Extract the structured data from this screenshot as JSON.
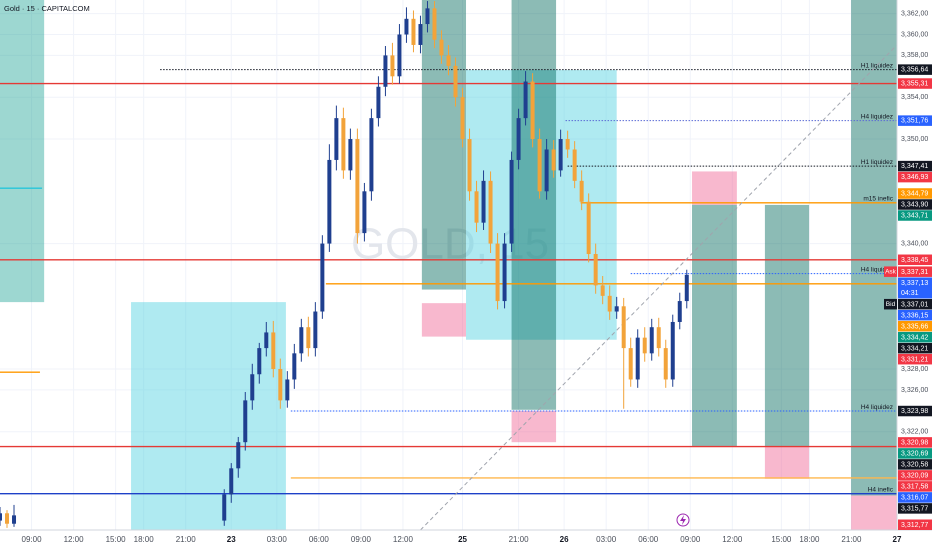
{
  "chart_data": {
    "type": "candlestick",
    "title": "Gold · 15 · CAPITALCOM",
    "watermark": "GOLD, 15",
    "xlim": [
      0,
      256
    ],
    "ylim": [
      3312.6,
      3363.3
    ],
    "grid": true,
    "up_color": "#1f3f8f",
    "down_color": "#f2a33a",
    "yticks": [
      {
        "value": 3362,
        "label": "3,362,00"
      },
      {
        "value": 3360,
        "label": "3,360,00"
      },
      {
        "value": 3358,
        "label": "3,358,00"
      },
      {
        "value": 3354,
        "label": "3,354,00"
      },
      {
        "value": 3350,
        "label": "3,350,00"
      },
      {
        "value": 3340,
        "label": "3,340,00"
      },
      {
        "value": 3328,
        "label": "3,328,00"
      },
      {
        "value": 3326,
        "label": "3,326,00"
      },
      {
        "value": 3322,
        "label": "3,322,00"
      }
    ],
    "xticks": [
      {
        "value": 9,
        "label": "09:00"
      },
      {
        "value": 21,
        "label": "12:00"
      },
      {
        "value": 33,
        "label": "15:00"
      },
      {
        "value": 41,
        "label": "18:00"
      },
      {
        "value": 53,
        "label": "21:00"
      },
      {
        "value": 66,
        "label": "23"
      },
      {
        "value": 79,
        "label": "03:00"
      },
      {
        "value": 91,
        "label": "06:00"
      },
      {
        "value": 103,
        "label": "09:00"
      },
      {
        "value": 115,
        "label": "12:00"
      },
      {
        "value": 132,
        "label": "25"
      },
      {
        "value": 148,
        "label": "21:00"
      },
      {
        "value": 161,
        "label": "26"
      },
      {
        "value": 173,
        "label": "03:00"
      },
      {
        "value": 185,
        "label": "06:00"
      },
      {
        "value": 197,
        "label": "09:00"
      },
      {
        "value": 209,
        "label": "12:00"
      },
      {
        "value": 223,
        "label": "15:00"
      },
      {
        "value": 231,
        "label": "18:00"
      },
      {
        "value": 243,
        "label": "21:00"
      },
      {
        "value": 256,
        "label": "27"
      }
    ],
    "zones": [
      {
        "x0": 0,
        "x1": 12.6,
        "y0": 3334.4,
        "y1": 3363.3,
        "color": "#26a69a"
      },
      {
        "x0": 37.4,
        "x1": 81.6,
        "y0": 3312.6,
        "y1": 3334.4,
        "color": "#4dd0e1"
      },
      {
        "x0": 120.4,
        "x1": 133,
        "y0": 3335.6,
        "y1": 3363.3,
        "color": "#00695c"
      },
      {
        "x0": 120.4,
        "x1": 133,
        "y0": 3331.1,
        "y1": 3334.3,
        "color": "#f06292"
      },
      {
        "x0": 133,
        "x1": 176,
        "y0": 3330.8,
        "y1": 3356.6,
        "color": "#4dd0e1"
      },
      {
        "x0": 146,
        "x1": 158.7,
        "y0": 3324.1,
        "y1": 3363.3,
        "color": "#00695c"
      },
      {
        "x0": 146,
        "x1": 158.7,
        "y0": 3321,
        "y1": 3324,
        "color": "#f06292"
      },
      {
        "x0": 197.5,
        "x1": 210.3,
        "y0": 3343.7,
        "y1": 3346.9,
        "color": "#f06292"
      },
      {
        "x0": 197.5,
        "x1": 210.3,
        "y0": 3320.6,
        "y1": 3343.7,
        "color": "#00695c"
      },
      {
        "x0": 218.3,
        "x1": 230.9,
        "y0": 3320.6,
        "y1": 3343.7,
        "color": "#00695c"
      },
      {
        "x0": 218.3,
        "x1": 230.9,
        "y0": 3317.5,
        "y1": 3320.6,
        "color": "#f06292"
      },
      {
        "x0": 242.9,
        "x1": 256,
        "y0": 3315.9,
        "y1": 3363.3,
        "color": "#00695c"
      },
      {
        "x0": 242.9,
        "x1": 256,
        "y0": 3312.6,
        "y1": 3315.9,
        "color": "#f06292"
      }
    ],
    "levels": [
      {
        "value": 3356.64,
        "from": 45.7,
        "to": 256,
        "color": "#131722",
        "dash": true,
        "label": "H1 liquidez"
      },
      {
        "value": 3355.31,
        "from": 0,
        "to": 256,
        "color": "#e53935",
        "dash": false
      },
      {
        "value": 3351.76,
        "from": 161.4,
        "to": 256,
        "color": "#5b6bd5",
        "dash": true,
        "label": "H4 liquidez"
      },
      {
        "value": 3347.41,
        "from": 162,
        "to": 256,
        "color": "#131722",
        "dash": true,
        "label": "H1 liquidez"
      },
      {
        "value": 3345.3,
        "from": 0,
        "to": 12,
        "color": "#26c6da",
        "dash": false
      },
      {
        "value": 3343.9,
        "from": 165.7,
        "to": 256,
        "color": "#ff9800",
        "dash": false,
        "label": "m15 inefic"
      },
      {
        "value": 3338.45,
        "from": 0,
        "to": 256,
        "color": "#e53935",
        "dash": false
      },
      {
        "value": 3337.13,
        "from": 180,
        "to": 256,
        "color": "#2962ff",
        "dash": true,
        "label": "H4 liquidez"
      },
      {
        "value": 3336.15,
        "from": 93,
        "to": 256,
        "color": "#ff9800",
        "dash": false
      },
      {
        "value": 3327.7,
        "from": 0,
        "to": 11.4,
        "color": "#ff9800",
        "dash": false
      },
      {
        "value": 3323.98,
        "from": 83,
        "to": 256,
        "color": "#2962ff",
        "dash": true,
        "label": "H4 liquidez"
      },
      {
        "value": 3320.58,
        "from": 0,
        "to": 256,
        "color": "#e53935",
        "dash": false
      },
      {
        "value": 3317.58,
        "from": 83,
        "to": 256,
        "color": "#ffb74d",
        "dash": false
      },
      {
        "value": 3316.07,
        "from": 0,
        "to": 256,
        "color": "#1e40c8",
        "dash": false,
        "label": "H4 inefic"
      }
    ],
    "trendline": {
      "x": [
        120,
        256
      ],
      "y": [
        3312.6,
        3359
      ]
    },
    "badges": [
      {
        "value": 3356.64,
        "label": "3,356,64",
        "color": "#131722"
      },
      {
        "value": 3355.31,
        "label": "3,355,31",
        "color": "#f23645"
      },
      {
        "value": 3351.76,
        "label": "3,351,76",
        "color": "#2962ff"
      },
      {
        "value": 3347.41,
        "label": "3,347,41",
        "color": "#131722"
      },
      {
        "value": 3346.93,
        "label": "3,346,93",
        "color": "#f23645"
      },
      {
        "value": 3344.79,
        "label": "3,344,79",
        "color": "#ff9800"
      },
      {
        "value": 3343.9,
        "label": "3,343,90",
        "color": "#131722"
      },
      {
        "value": 3343.71,
        "label": "3,343,71",
        "color": "#089981"
      },
      {
        "value": 3338.45,
        "label": "3,338,45",
        "color": "#f23645"
      },
      {
        "value": 3337.31,
        "label": "3,337,31",
        "color": "#f23645",
        "tag": "Ask"
      },
      {
        "value": 3337.13,
        "label": "3,337,13",
        "color": "#2962ff",
        "countdown": "04:31"
      },
      {
        "value": 3337.01,
        "label": "3,337,01",
        "color": "#131722",
        "tag": "Bid"
      },
      {
        "value": 3336.15,
        "label": "3,336,15",
        "color": "#2962ff"
      },
      {
        "value": 3335.66,
        "label": "3,335,66",
        "color": "#ff9800"
      },
      {
        "value": 3334.42,
        "label": "3,334,42",
        "color": "#089981"
      },
      {
        "value": 3334.21,
        "label": "3,334,21",
        "color": "#131722"
      },
      {
        "value": 3331.21,
        "label": "3,331,21",
        "color": "#f23645"
      },
      {
        "value": 3323.98,
        "label": "3,323,98",
        "color": "#131722"
      },
      {
        "value": 3320.98,
        "label": "3,320,98",
        "color": "#f23645"
      },
      {
        "value": 3320.69,
        "label": "3,320,69",
        "color": "#089981"
      },
      {
        "value": 3320.58,
        "label": "3,320,58",
        "color": "#131722"
      },
      {
        "value": 3320.09,
        "label": "3,320,09",
        "color": "#f23645"
      },
      {
        "value": 3317.58,
        "label": "3,317,58",
        "color": "#f23645"
      },
      {
        "value": 3316.07,
        "label": "3,316,07",
        "color": "#2962ff"
      },
      {
        "value": 3315.77,
        "label": "3,315,77",
        "color": "#131722"
      },
      {
        "value": 3312.77,
        "label": "3,312,77",
        "color": "#f23645"
      }
    ],
    "candles": {
      "x": [
        0,
        2,
        4,
        64,
        66,
        68,
        70,
        72,
        74,
        76,
        78,
        80,
        82,
        84,
        86,
        88,
        90,
        92,
        94,
        96,
        98,
        100,
        102,
        104,
        106,
        108,
        110,
        112,
        114,
        116,
        118,
        120,
        122,
        124,
        126,
        128,
        130,
        132,
        134,
        136,
        138,
        140,
        142,
        144,
        146,
        148,
        150,
        152,
        154,
        156,
        158,
        160,
        162,
        164,
        166,
        168,
        170,
        172,
        174,
        176,
        178,
        180,
        182,
        184,
        186,
        188,
        190,
        192,
        194,
        196
      ],
      "open": [
        3313.5,
        3314.2,
        3313.2,
        3313.5,
        3316,
        3318.5,
        3321,
        3325,
        3327.5,
        3330,
        3331.5,
        3328,
        3325,
        3327,
        3329.5,
        3332,
        3330,
        3333.5,
        3340,
        3348,
        3352,
        3347,
        3350,
        3341,
        3345,
        3352,
        3355,
        3358,
        3356,
        3360,
        3361.5,
        3359,
        3361,
        3362.5,
        3359.5,
        3358,
        3357,
        3354,
        3350,
        3345,
        3342,
        3346,
        3340,
        3334.5,
        3340,
        3348,
        3352,
        3355.5,
        3350,
        3345,
        3349,
        3347,
        3350,
        3349,
        3346,
        3344,
        3339,
        3336,
        3335,
        3333.5,
        3334,
        3330,
        3327,
        3331,
        3329.5,
        3332,
        3330,
        3327,
        3332.5,
        3334.5
      ],
      "high": [
        3314.8,
        3314.5,
        3315,
        3316.5,
        3319,
        3321.5,
        3325.8,
        3328.5,
        3330.5,
        3332.5,
        3332.6,
        3329,
        3327.8,
        3330.4,
        3332.8,
        3333,
        3334.4,
        3340.8,
        3349.5,
        3353.2,
        3353,
        3351,
        3351,
        3345.8,
        3352.9,
        3356,
        3358.9,
        3359.2,
        3361,
        3362.6,
        3362.3,
        3361.8,
        3363.2,
        3363.2,
        3360.4,
        3359,
        3357.8,
        3354.9,
        3351,
        3346,
        3347,
        3346.9,
        3341,
        3341,
        3348.8,
        3352.9,
        3356.5,
        3356.3,
        3351,
        3350,
        3349.9,
        3350.9,
        3350.8,
        3349.8,
        3347,
        3344.8,
        3340,
        3336.9,
        3336,
        3334.9,
        3334.8,
        3331,
        3331.8,
        3332,
        3332.8,
        3332.9,
        3330.8,
        3333.2,
        3335.3,
        3337.5
      ],
      "low": [
        3313,
        3312.8,
        3312.9,
        3313,
        3315.2,
        3317.6,
        3320.2,
        3324.1,
        3326.6,
        3329.2,
        3327.2,
        3324.2,
        3324.3,
        3326.1,
        3328.7,
        3329.2,
        3329.2,
        3332.8,
        3339.2,
        3347,
        3346.2,
        3346.1,
        3340,
        3340.2,
        3344.1,
        3351.2,
        3354.1,
        3355.2,
        3355.3,
        3359.2,
        3358.3,
        3358.2,
        3360.2,
        3358.7,
        3357.2,
        3356.1,
        3353.1,
        3349.2,
        3344.1,
        3341.1,
        3341.3,
        3339.1,
        3333.7,
        3333.8,
        3339.2,
        3347.1,
        3351.3,
        3349.2,
        3344.3,
        3344.2,
        3346.3,
        3346.4,
        3348.2,
        3345.3,
        3343.2,
        3338.2,
        3335.2,
        3334.2,
        3332.7,
        3332.8,
        3324.2,
        3326.3,
        3326.2,
        3328.7,
        3328.8,
        3329.2,
        3326.2,
        3326.3,
        3331.8,
        3333.8
      ],
      "close": [
        3314.2,
        3313.2,
        3314,
        3316,
        3318.5,
        3321,
        3325,
        3327.5,
        3330,
        3331.5,
        3328,
        3325,
        3327,
        3329.5,
        3332,
        3330,
        3333.5,
        3340,
        3348,
        3352,
        3347,
        3350,
        3341,
        3345,
        3352,
        3355,
        3358,
        3356,
        3360,
        3361.5,
        3359,
        3361,
        3362.5,
        3359.5,
        3358,
        3357,
        3354,
        3350,
        3345,
        3342,
        3346,
        3340,
        3334.5,
        3340,
        3348,
        3352,
        3355.5,
        3350,
        3345,
        3349,
        3347,
        3350,
        3349,
        3346,
        3344,
        3339,
        3336,
        3335,
        3333.5,
        3334,
        3330,
        3327,
        3331,
        3329.5,
        3332,
        3330,
        3327,
        3332.5,
        3334.5,
        3337.01
      ]
    }
  }
}
